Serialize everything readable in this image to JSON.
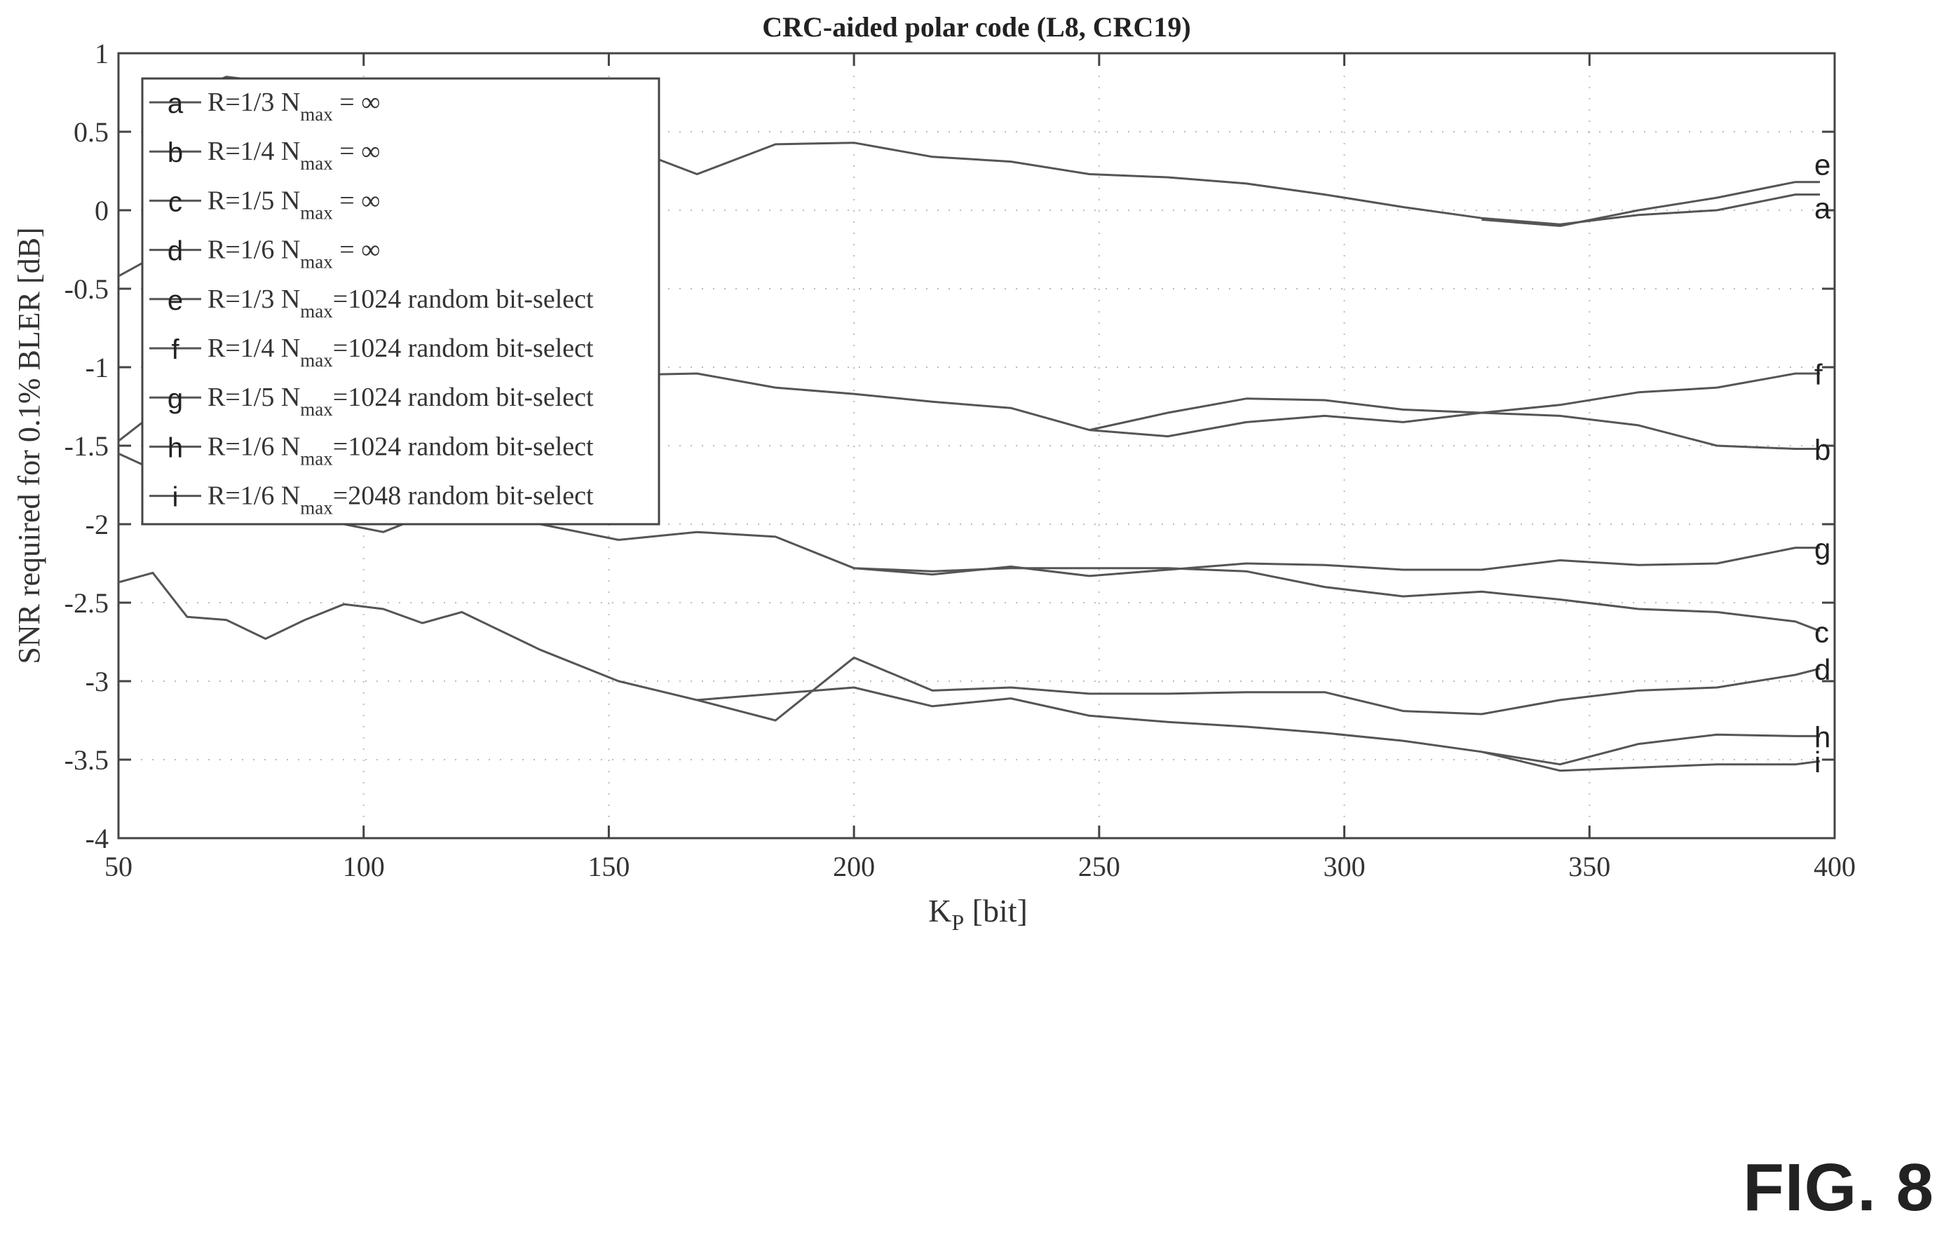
{
  "figure_label": "FIG. 8",
  "chart_data": {
    "type": "line",
    "title": "CRC-aided polar code (L8, CRC19)",
    "xlabel": "K",
    "xlabel_sub": "P",
    "xlabel_unit": " [bit]",
    "ylabel": "SNR required for 0.1% BLER [dB]",
    "xlim": [
      50,
      400
    ],
    "ylim": [
      -4,
      1
    ],
    "xticks": [
      50,
      100,
      150,
      200,
      250,
      300,
      350,
      400
    ],
    "yticks": [
      1,
      0.5,
      0,
      -0.5,
      -1,
      -1.5,
      -2,
      -2.5,
      -3,
      -3.5,
      -4
    ],
    "ytick_labels": [
      "1",
      "0.5",
      "0",
      "-0.5",
      "-1",
      "-1.5",
      "-2",
      "-2.5",
      "-3",
      "-3.5",
      "-4"
    ],
    "grid": "dotted",
    "legend_position": "top-left",
    "series": [
      {
        "name": "a",
        "legend": {
          "prefix": "R=1/3 N",
          "sub": "max",
          "suffix": " = ∞"
        },
        "x": [
          50,
          57,
          64,
          72,
          80,
          88,
          96,
          104,
          112,
          120,
          136,
          152,
          168,
          184,
          200,
          216,
          232,
          248,
          264,
          280,
          296,
          312,
          328,
          344,
          360,
          376,
          392,
          397
        ],
        "y": [
          -0.42,
          -0.3,
          0.75,
          0.85,
          0.82,
          0.78,
          0.7,
          0.62,
          0.58,
          0.55,
          0.5,
          0.42,
          0.23,
          0.42,
          0.43,
          0.34,
          0.31,
          0.23,
          0.21,
          0.17,
          0.1,
          0.02,
          -0.05,
          -0.09,
          -0.03,
          0.0,
          0.1,
          0.1
        ]
      },
      {
        "name": "b",
        "legend": {
          "prefix": "R=1/4 N",
          "sub": "max",
          "suffix": " = ∞"
        },
        "x": [
          50,
          57,
          64,
          72,
          80,
          88,
          96,
          104,
          112,
          120,
          136,
          152,
          168,
          184,
          200,
          216,
          232,
          248,
          264,
          280,
          296,
          312,
          328,
          344,
          360,
          376,
          392,
          397
        ],
        "y": [
          -1.47,
          -1.3,
          -1.2,
          -1.15,
          -1.12,
          -1.1,
          -1.08,
          -1.07,
          -1.06,
          -1.05,
          -1.04,
          -1.05,
          -1.04,
          -1.13,
          -1.17,
          -1.22,
          -1.26,
          -1.4,
          -1.44,
          -1.35,
          -1.31,
          -1.35,
          -1.29,
          -1.31,
          -1.37,
          -1.5,
          -1.52,
          -1.52
        ]
      },
      {
        "name": "c",
        "legend": {
          "prefix": "R=1/5 N",
          "sub": "max",
          "suffix": " = ∞"
        },
        "x": [
          50,
          57,
          64,
          72,
          80,
          88,
          96,
          104,
          112,
          120,
          136,
          152,
          168,
          184,
          200,
          216,
          232,
          248,
          264,
          280,
          296,
          312,
          328,
          344,
          360,
          376,
          392,
          397
        ],
        "y": [
          -1.55,
          -1.65,
          -1.75,
          -1.8,
          -1.85,
          -1.9,
          -2.0,
          -2.05,
          -1.95,
          -1.92,
          -2.0,
          -2.1,
          -2.05,
          -2.08,
          -2.28,
          -2.3,
          -2.28,
          -2.28,
          -2.28,
          -2.3,
          -2.4,
          -2.46,
          -2.43,
          -2.48,
          -2.54,
          -2.56,
          -2.62,
          -2.68
        ]
      },
      {
        "name": "d",
        "legend": {
          "prefix": "R=1/6 N",
          "sub": "max",
          "suffix": " = ∞"
        },
        "x": [
          50,
          57,
          64,
          72,
          80,
          88,
          96,
          104,
          112,
          120,
          136,
          152,
          168,
          184,
          200,
          216,
          232,
          248,
          264,
          280,
          296,
          312,
          328,
          344,
          360,
          376,
          392,
          397
        ],
        "y": [
          -2.37,
          -2.31,
          -2.59,
          -2.61,
          -2.73,
          -2.61,
          -2.51,
          -2.54,
          -2.63,
          -2.56,
          -2.8,
          -3.0,
          -3.12,
          -3.25,
          -2.85,
          -3.06,
          -3.04,
          -3.08,
          -3.08,
          -3.07,
          -3.07,
          -3.19,
          -3.21,
          -3.12,
          -3.06,
          -3.04,
          -2.96,
          -2.92
        ]
      },
      {
        "name": "e",
        "legend": {
          "prefix": "R=1/3 N",
          "sub": "max",
          "suffix": "=1024 random bit-select"
        },
        "x": [
          328,
          344,
          360,
          376,
          392,
          397
        ],
        "y": [
          -0.06,
          -0.1,
          0.0,
          0.08,
          0.18,
          0.18
        ]
      },
      {
        "name": "f",
        "legend": {
          "prefix": "R=1/4 N",
          "sub": "max",
          "suffix": "=1024 random bit-select"
        },
        "x": [
          248,
          264,
          280,
          296,
          312,
          328,
          344,
          360,
          376,
          392,
          397
        ],
        "y": [
          -1.4,
          -1.29,
          -1.2,
          -1.21,
          -1.27,
          -1.29,
          -1.24,
          -1.16,
          -1.13,
          -1.04,
          -1.04
        ]
      },
      {
        "name": "g",
        "legend": {
          "prefix": "R=1/5 N",
          "sub": "max",
          "suffix": "=1024 random bit-select"
        },
        "x": [
          200,
          216,
          232,
          248,
          264,
          280,
          296,
          312,
          328,
          344,
          360,
          376,
          392,
          397
        ],
        "y": [
          -2.28,
          -2.32,
          -2.27,
          -2.33,
          -2.29,
          -2.25,
          -2.26,
          -2.29,
          -2.29,
          -2.23,
          -2.26,
          -2.25,
          -2.15,
          -2.15
        ]
      },
      {
        "name": "h",
        "legend": {
          "prefix": "R=1/6 N",
          "sub": "max",
          "suffix": "=1024 random bit-select"
        },
        "x": [
          168,
          184,
          200,
          216,
          232,
          248,
          264,
          280,
          296,
          312,
          328,
          344,
          360,
          376,
          392,
          397
        ],
        "y": [
          -3.12,
          -3.08,
          -3.04,
          -3.16,
          -3.11,
          -3.22,
          -3.26,
          -3.29,
          -3.33,
          -3.38,
          -3.45,
          -3.53,
          -3.4,
          -3.34,
          -3.35,
          -3.35
        ]
      },
      {
        "name": "i",
        "legend": {
          "prefix": "R=1/6 N",
          "sub": "max",
          "suffix": "=2048 random bit-select"
        },
        "x": [
          328,
          344,
          360,
          376,
          392,
          397
        ],
        "y": [
          -3.45,
          -3.57,
          -3.55,
          -3.53,
          -3.53,
          -3.51
        ]
      }
    ],
    "end_labels": [
      "e",
      "a",
      "f",
      "b",
      "g",
      "c",
      "h",
      "d",
      "i"
    ]
  }
}
